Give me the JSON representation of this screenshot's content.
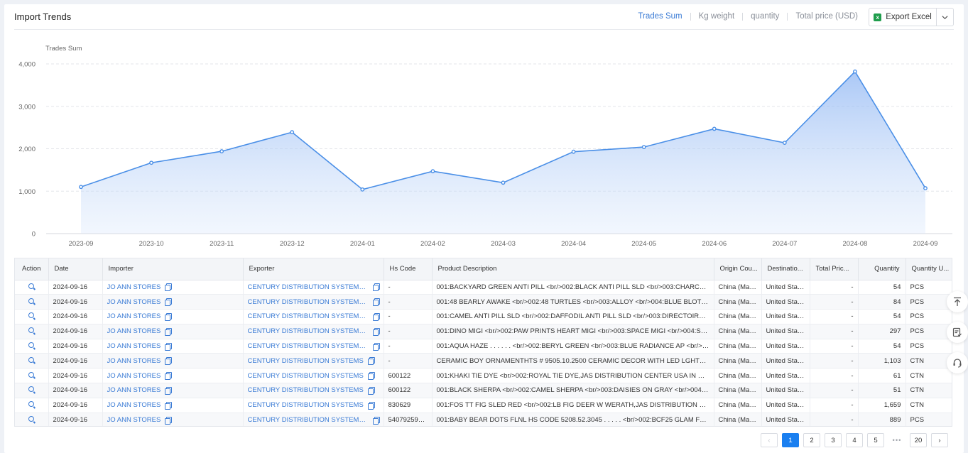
{
  "header": {
    "title": "Import Trends",
    "metrics": [
      "Trades Sum",
      "Kg weight",
      "quantity",
      "Total price (USD)"
    ],
    "active_metric": "Trades Sum",
    "export_label": "Export Excel"
  },
  "chart_data": {
    "type": "area",
    "ylabel": "Trades Sum",
    "xlabel": "",
    "ylim": [
      0,
      4000
    ],
    "yticks": [
      0,
      1000,
      2000,
      3000,
      4000
    ],
    "ytick_labels": [
      "0",
      "1,000",
      "2,000",
      "3,000",
      "4,000"
    ],
    "categories": [
      "2023-09",
      "2023-10",
      "2023-11",
      "2023-12",
      "2024-01",
      "2024-02",
      "2024-03",
      "2024-04",
      "2024-05",
      "2024-06",
      "2024-07",
      "2024-08",
      "2024-09"
    ],
    "series": [
      {
        "values": [
          1100,
          1670,
          1940,
          2390,
          1040,
          1470,
          1200,
          1930,
          2040,
          2470,
          2140,
          3820,
          1070
        ]
      }
    ],
    "grid": true,
    "color": "#4a8fe7"
  },
  "table": {
    "columns": [
      "Action",
      "Date",
      "Importer",
      "Exporter",
      "Hs Code",
      "Product Description",
      "Origin Cou...",
      "Destinatio...",
      "Total Pric...",
      "Quantity",
      "Quantity U..."
    ],
    "rows": [
      {
        "date": "2024-09-16",
        "importer": "JO ANN STORES",
        "exporter": "CENTURY DISTRIBUTION SYSTEMS SH...",
        "hs": "-",
        "desc": "001:BACKYARD GREEN ANTI PILL <br/>002:BLACK ANTI PILL SLD <br/>003:CHARCOAL HEAT...",
        "origin": "China (Main...",
        "dest": "United States",
        "price": "-",
        "qty": "54",
        "unit": "PCS"
      },
      {
        "date": "2024-09-16",
        "importer": "JO ANN STORES",
        "exporter": "CENTURY DISTRIBUTION SYSTEMS SH...",
        "hs": "-",
        "desc": "001:48 BEARLY AWAKE <br/>002:48 TURTLES <br/>003:ALLOY <br/>004:BLUE BLOTCH <br/>...",
        "origin": "China (Main...",
        "dest": "United States",
        "price": "-",
        "qty": "84",
        "unit": "PCS"
      },
      {
        "date": "2024-09-16",
        "importer": "JO ANN STORES",
        "exporter": "CENTURY DISTRIBUTION SYSTEMS SH...",
        "hs": "-",
        "desc": "001:CAMEL ANTI PILL SLD <br/>002:DAFFODIL ANTI PILL SLD <br/>003:DIRECTOIRE BLUE A...",
        "origin": "China (Main...",
        "dest": "United States",
        "price": "-",
        "qty": "54",
        "unit": "PCS"
      },
      {
        "date": "2024-09-16",
        "importer": "JO ANN STORES",
        "exporter": "CENTURY DISTRIBUTION SYSTEMS SH...",
        "hs": "-",
        "desc": "001:DINO MIGI <br/>002:PAW PRINTS HEART MIGI <br/>003:SPACE MIGI <br/>004:SPORTS M...",
        "origin": "China (Main...",
        "dest": "United States",
        "price": "-",
        "qty": "297",
        "unit": "PCS"
      },
      {
        "date": "2024-09-16",
        "importer": "JO ANN STORES",
        "exporter": "CENTURY DISTRIBUTION SYSTEMS SH...",
        "hs": "-",
        "desc": "001:AQUA HAZE . . . . . . <br/>002:BERYL GREEN <br/>003:BLUE RADIANCE AP <br/>004:CAPT...",
        "origin": "China (Main...",
        "dest": "United States",
        "price": "-",
        "qty": "54",
        "unit": "PCS"
      },
      {
        "date": "2024-09-16",
        "importer": "JO ANN STORES",
        "exporter": "CENTURY DISTRIBUTION SYSTEMS",
        "hs": "-",
        "desc": "CERAMIC BOY ORNAMENTHTS # 9505.10.2500 CERAMIC DECOR WITH LED LGHTS # 6913.90...",
        "origin": "China (Main...",
        "dest": "United States",
        "price": "-",
        "qty": "1,103",
        "unit": "CTN"
      },
      {
        "date": "2024-09-16",
        "importer": "JO ANN STORES",
        "exporter": "CENTURY DISTRIBUTION SYSTEMS",
        "hs": "600122",
        "desc": "001:KHAKI TIE DYE <br/>002:ROYAL TIE DYE,JAS DISTRIBUTION CENTER USA IN DIA P.O. # V...",
        "origin": "China (Main...",
        "dest": "United States",
        "price": "-",
        "qty": "61",
        "unit": "CTN"
      },
      {
        "date": "2024-09-16",
        "importer": "JO ANN STORES",
        "exporter": "CENTURY DISTRIBUTION SYSTEMS",
        "hs": "600122",
        "desc": "001:BLACK SHERPA <br/>002:CAMEL SHERPA <br/>003:DAISIES ON GRAY <br/>004:EB ANTI ...",
        "origin": "China (Main...",
        "dest": "United States",
        "price": "-",
        "qty": "51",
        "unit": "CTN"
      },
      {
        "date": "2024-09-16",
        "importer": "JO ANN STORES",
        "exporter": "CENTURY DISTRIBUTION SYSTEMS",
        "hs": "830629",
        "desc": "001:FOS TT FIG SLED RED <br/>002:LB FIG DEER W WERATH,JAS DISTRIBUTION CENTER US...",
        "origin": "China (Main...",
        "dest": "United States",
        "price": "-",
        "qty": "1,659",
        "unit": "CTN"
      },
      {
        "date": "2024-09-16",
        "importer": "JO ANN STORES",
        "exporter": "CENTURY DISTRIBUTION SYSTEMS SH...",
        "hs": "540792590...",
        "desc": "001:BABY BEAR DOTS FLNL HS CODE 5208.52.3045 . . . . . <br/>002:BCF25 GLAM FRINGE BE...",
        "origin": "China (Main...",
        "dest": "United States",
        "price": "-",
        "qty": "889",
        "unit": "PCS"
      }
    ]
  },
  "pagination": {
    "pages": [
      "1",
      "2",
      "3",
      "4",
      "5"
    ],
    "current": "1",
    "ellipsis": "•••",
    "last": "20",
    "prev": "‹",
    "next": "›"
  },
  "side_tools": [
    "back-to-top-icon",
    "list-check-icon",
    "headset-icon"
  ]
}
